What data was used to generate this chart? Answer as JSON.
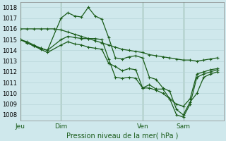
{
  "bg_color": "#cfe8ec",
  "grid_major_color": "#b8d4d8",
  "grid_minor_color": "#d0e8ec",
  "line_color": "#1a5c1a",
  "sep_color": "#5a8a5a",
  "ylim": [
    1007.5,
    1018.5
  ],
  "yticks": [
    1008,
    1009,
    1010,
    1011,
    1012,
    1013,
    1014,
    1015,
    1016,
    1017,
    1018
  ],
  "xlabel": "Pression niveau de la mer( hPa )",
  "day_labels": [
    "Jeu",
    "Dim",
    "Ven",
    "Sam"
  ],
  "day_positions": [
    0,
    3,
    9,
    12
  ],
  "xlim": [
    0,
    15
  ],
  "series": [
    {
      "x": [
        0,
        0.5,
        1,
        1.5,
        2,
        2.5,
        3,
        3.5,
        4,
        4.5,
        5,
        5.5,
        6,
        6.5,
        7,
        7.5,
        8,
        8.5,
        9,
        9.5,
        10,
        10.5,
        11,
        11.5,
        12,
        12.5,
        13,
        13.5,
        14,
        14.5
      ],
      "y": [
        1016.0,
        1016.0,
        1016.0,
        1016.0,
        1016.0,
        1016.0,
        1015.9,
        1015.7,
        1015.5,
        1015.3,
        1015.1,
        1014.9,
        1014.7,
        1014.5,
        1014.3,
        1014.1,
        1014.0,
        1013.9,
        1013.8,
        1013.6,
        1013.5,
        1013.4,
        1013.3,
        1013.2,
        1013.1,
        1013.1,
        1013.0,
        1013.1,
        1013.2,
        1013.3
      ]
    },
    {
      "x": [
        0,
        0.5,
        1.0,
        1.5,
        2.0,
        3.0,
        3.5,
        4.0,
        4.5,
        5.0,
        5.5,
        6.0,
        6.5,
        7.0,
        7.5,
        8.0,
        8.5,
        9.0,
        9.5,
        10.0,
        10.5,
        11.0,
        11.5,
        12.0,
        12.5,
        13.0,
        13.5,
        14.0,
        14.5
      ],
      "y": [
        1015.0,
        1014.8,
        1014.5,
        1014.2,
        1014.0,
        1017.0,
        1017.5,
        1017.2,
        1017.1,
        1018.0,
        1017.2,
        1016.9,
        1015.2,
        1013.3,
        1013.2,
        1013.4,
        1013.5,
        1013.3,
        1011.5,
        1011.3,
        1010.5,
        1010.2,
        1008.5,
        1008.0,
        1009.2,
        1010.0,
        1011.5,
        1011.8,
        1012.0
      ]
    },
    {
      "x": [
        0,
        0.5,
        1.0,
        1.5,
        2.0,
        3.0,
        3.5,
        4.0,
        4.5,
        5.0,
        5.5,
        6.0,
        6.5,
        7.0,
        7.5,
        8.0,
        8.5,
        9.0,
        9.5,
        10.0,
        10.5,
        11.0,
        11.5,
        12.0,
        12.5,
        13.0,
        13.5,
        14.0,
        14.5
      ],
      "y": [
        1015.0,
        1014.7,
        1014.4,
        1014.2,
        1014.0,
        1015.0,
        1015.3,
        1015.2,
        1015.1,
        1015.1,
        1015.1,
        1015.0,
        1013.2,
        1011.5,
        1011.4,
        1011.5,
        1011.4,
        1010.5,
        1010.5,
        1010.3,
        1010.0,
        1009.5,
        1008.0,
        1007.8,
        1009.0,
        1011.5,
        1011.8,
        1012.0,
        1012.2
      ]
    },
    {
      "x": [
        0,
        0.5,
        1.0,
        1.5,
        2.0,
        3.0,
        3.5,
        4.0,
        4.5,
        5.0,
        5.5,
        6.0,
        6.5,
        7.0,
        7.5,
        8.0,
        8.5,
        9.0,
        9.5,
        10.0,
        10.5,
        11.0,
        11.5,
        12.0,
        12.5,
        13.0,
        13.5,
        14.0,
        14.5
      ],
      "y": [
        1015.0,
        1014.7,
        1014.4,
        1014.1,
        1013.8,
        1014.5,
        1014.8,
        1014.6,
        1014.5,
        1014.3,
        1014.2,
        1014.1,
        1012.8,
        1012.5,
        1012.1,
        1012.3,
        1012.2,
        1010.5,
        1010.8,
        1010.4,
        1010.4,
        1009.5,
        1009.0,
        1008.8,
        1009.5,
        1011.8,
        1012.0,
        1012.2,
        1012.3
      ]
    }
  ]
}
